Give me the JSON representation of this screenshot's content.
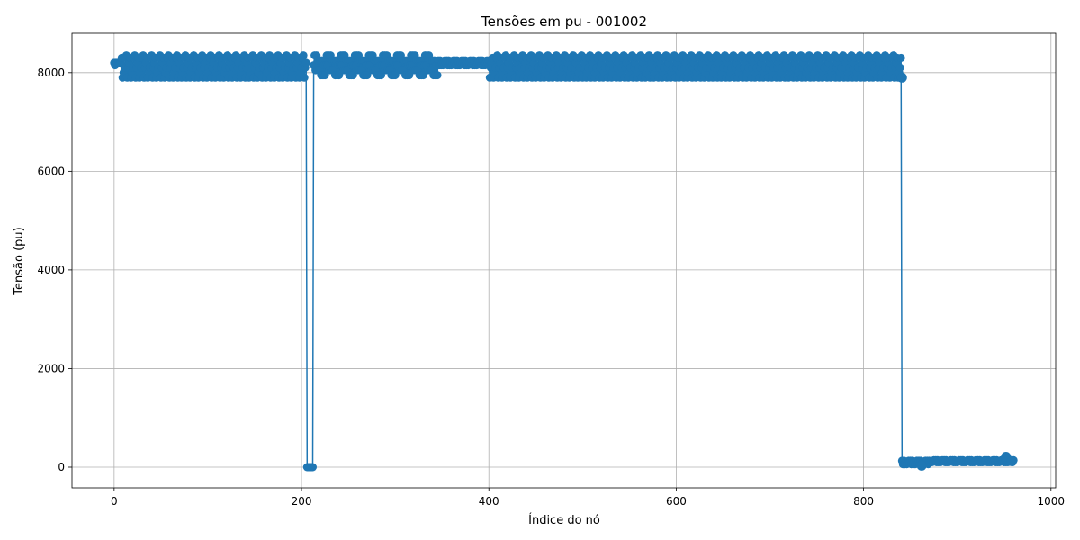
{
  "chart_data": {
    "type": "line",
    "title": "Tensões em pu - 001002",
    "xlabel": "Índice do nó",
    "ylabel": "Tensão (pu)",
    "xlim": [
      -45,
      1005
    ],
    "ylim": [
      -420,
      8800
    ],
    "xticks": [
      0,
      200,
      400,
      600,
      800,
      1000
    ],
    "yticks": [
      0,
      2000,
      4000,
      6000,
      8000
    ],
    "grid": true,
    "marker": "circle",
    "color": "#1f77b4",
    "series": [
      {
        "segments": [
          {
            "range": [
              0,
              6
            ],
            "levels": [
              8200,
              8200,
              8200,
              8150
            ]
          },
          {
            "range": [
              7,
              205
            ],
            "levels": [
              7900,
              8000,
              8100,
              8200,
              8300,
              8350
            ]
          },
          {
            "range": [
              206,
              212
            ],
            "levels": [
              0
            ]
          },
          {
            "range": [
              213,
              345
            ],
            "levels": [
              7950,
              8050,
              8150,
              8250,
              8350
            ]
          },
          {
            "range": [
              346,
              400
            ],
            "levels": [
              8150,
              8200,
              8250
            ]
          },
          {
            "range": [
              401,
              840
            ],
            "levels": [
              7900,
              8000,
              8100,
              8200,
              8300,
              8350
            ]
          },
          {
            "range": [
              841,
              870
            ],
            "levels": [
              60,
              100,
              130
            ]
          },
          {
            "range": [
              871,
              960
            ],
            "levels": [
              100,
              120,
              140
            ]
          }
        ],
        "highlights": [
          {
            "x": 841,
            "y": 7900
          },
          {
            "x": 862,
            "y": 30
          },
          {
            "x": 952,
            "y": 210
          },
          {
            "x": 958,
            "y": 120
          }
        ]
      }
    ]
  }
}
